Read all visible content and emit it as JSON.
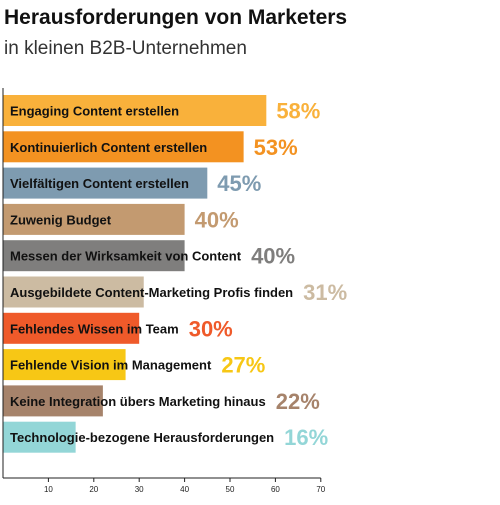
{
  "chart_data": {
    "type": "bar",
    "orientation": "horizontal",
    "title": "Herausforderungen von Marketers",
    "subtitle": "in kleinen B2B-Unternehmen",
    "xlim": [
      0,
      70
    ],
    "xticks": [
      "10",
      "20",
      "30",
      "40",
      "50",
      "60",
      "70"
    ],
    "categories": [
      "Engaging Content erstellen",
      "Kontinuierlich Content erstellen",
      "Vielfältigen Content erstellen",
      "Zuwenig Budget",
      "Messen der Wirksamkeit von Content",
      "Ausgebildete Content-Marketing Profis finden",
      "Fehlendes Wissen im Team",
      "Fehlende Vision im Management",
      "Keine Integration übers Marketing hinaus",
      "Technologie-bezogene Herausforderungen"
    ],
    "values": [
      58,
      53,
      45,
      40,
      40,
      31,
      30,
      27,
      22,
      16
    ],
    "value_labels": [
      "58%",
      "53%",
      "45%",
      "40%",
      "40%",
      "31%",
      "30%",
      "27%",
      "22%",
      "16%"
    ],
    "colors": [
      "#F9B13B",
      "#F39221",
      "#7E9BB0",
      "#C39A70",
      "#7F7E7D",
      "#CCBBA2",
      "#EF5A2A",
      "#F7C715",
      "#A6836B",
      "#93D6D7"
    ],
    "grid": false,
    "legend": "none"
  }
}
